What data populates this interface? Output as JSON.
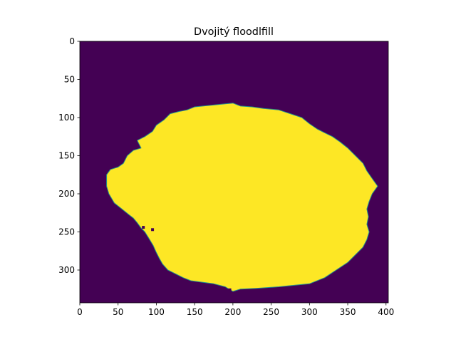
{
  "chart_data": {
    "type": "heatmap",
    "title": "Dvojitý floodlfill",
    "xlabel": "",
    "ylabel": "",
    "image_width": 403,
    "image_height": 343,
    "xlim": [
      0,
      403
    ],
    "ylim": [
      343,
      0
    ],
    "x_ticks": [
      0,
      50,
      100,
      150,
      200,
      250,
      300,
      350,
      400
    ],
    "y_ticks": [
      0,
      50,
      100,
      150,
      200,
      250,
      300
    ],
    "grid": false,
    "colormap": "viridis",
    "values_legend": [
      {
        "value": 0,
        "color": "#440154"
      },
      {
        "value": 1,
        "color": "#fde725"
      }
    ],
    "edge_color": "#21918c",
    "filled_region_outline": [
      [
        35,
        175
      ],
      [
        40,
        168
      ],
      [
        50,
        165
      ],
      [
        57,
        160
      ],
      [
        62,
        150
      ],
      [
        70,
        143
      ],
      [
        80,
        140
      ],
      [
        75,
        130
      ],
      [
        85,
        125
      ],
      [
        95,
        118
      ],
      [
        100,
        110
      ],
      [
        110,
        103
      ],
      [
        118,
        95
      ],
      [
        130,
        92
      ],
      [
        140,
        90
      ],
      [
        150,
        86
      ],
      [
        170,
        84
      ],
      [
        190,
        82
      ],
      [
        200,
        81
      ],
      [
        210,
        85
      ],
      [
        225,
        86
      ],
      [
        240,
        88
      ],
      [
        260,
        90
      ],
      [
        275,
        95
      ],
      [
        290,
        100
      ],
      [
        300,
        108
      ],
      [
        310,
        115
      ],
      [
        320,
        120
      ],
      [
        330,
        125
      ],
      [
        340,
        132
      ],
      [
        350,
        140
      ],
      [
        360,
        150
      ],
      [
        370,
        160
      ],
      [
        375,
        170
      ],
      [
        382,
        180
      ],
      [
        389,
        190
      ],
      [
        382,
        200
      ],
      [
        378,
        210
      ],
      [
        375,
        220
      ],
      [
        377,
        230
      ],
      [
        375,
        240
      ],
      [
        378,
        250
      ],
      [
        375,
        260
      ],
      [
        370,
        270
      ],
      [
        360,
        280
      ],
      [
        350,
        290
      ],
      [
        335,
        300
      ],
      [
        320,
        310
      ],
      [
        300,
        318
      ],
      [
        280,
        320
      ],
      [
        260,
        322
      ],
      [
        245,
        323
      ],
      [
        230,
        324
      ],
      [
        210,
        325
      ],
      [
        200,
        328
      ],
      [
        190,
        322
      ],
      [
        175,
        318
      ],
      [
        160,
        316
      ],
      [
        145,
        314
      ],
      [
        135,
        310
      ],
      [
        125,
        305
      ],
      [
        115,
        300
      ],
      [
        108,
        292
      ],
      [
        104,
        285
      ],
      [
        100,
        277
      ],
      [
        96,
        268
      ],
      [
        90,
        258
      ],
      [
        85,
        250
      ],
      [
        80,
        245
      ],
      [
        75,
        238
      ],
      [
        70,
        232
      ],
      [
        65,
        228
      ],
      [
        55,
        220
      ],
      [
        45,
        212
      ],
      [
        38,
        200
      ],
      [
        35,
        190
      ],
      [
        35,
        180
      ]
    ],
    "speckles": [
      [
        95,
        247
      ],
      [
        110,
        300
      ],
      [
        196,
        326
      ],
      [
        83,
        244
      ]
    ]
  }
}
